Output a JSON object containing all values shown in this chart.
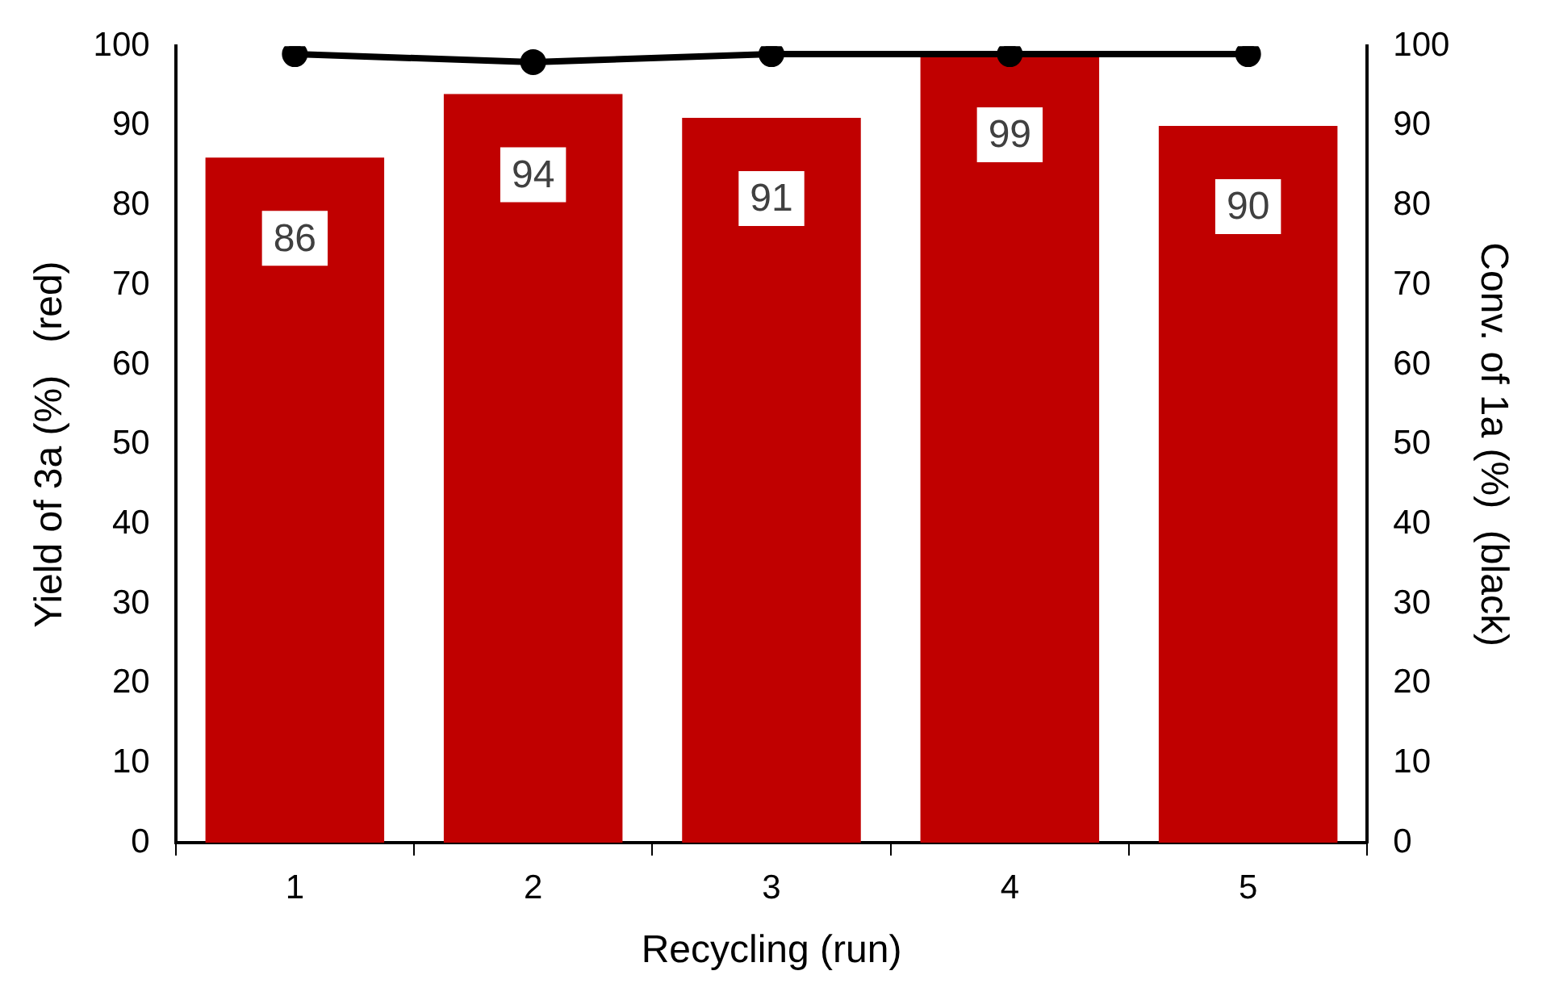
{
  "chart_data": {
    "type": "bar",
    "xlabel": "Recycling (run)",
    "ylabel": "Yield of 3a (%)   (red)",
    "y2label": "Conv. of 1a (%)  (black)",
    "categories": [
      "1",
      "2",
      "3",
      "4",
      "5"
    ],
    "series": [
      {
        "color": "#c00000",
        "values": [
          86,
          94,
          91,
          99,
          90
        ],
        "value_labels": [
          "86",
          "94",
          "91",
          "99",
          "90"
        ]
      },
      {
        "type": "line",
        "axis": "y2",
        "color": "#000000",
        "values": [
          99,
          98,
          99,
          99,
          99
        ],
        "marker": "circle"
      }
    ],
    "ylim": [
      0,
      100
    ],
    "yticks": [
      0,
      10,
      20,
      30,
      40,
      50,
      60,
      70,
      80,
      90,
      100
    ],
    "y2lim": [
      0,
      100
    ],
    "y2ticks": [
      0,
      10,
      20,
      30,
      40,
      50,
      60,
      70,
      80,
      90,
      100
    ],
    "grid": false,
    "legend": false
  }
}
